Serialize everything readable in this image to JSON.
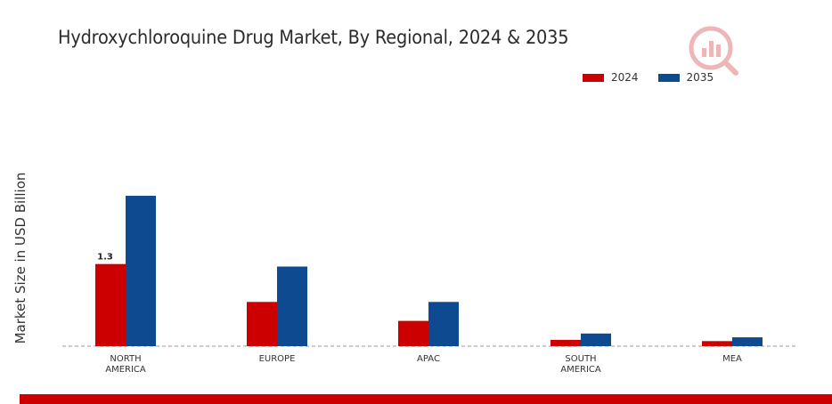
{
  "chart_data": {
    "type": "bar",
    "title": "Hydroxychloroquine Drug Market, By Regional, 2024 & 2035",
    "xlabel": "",
    "ylabel": "Market Size in USD Billion",
    "categories": [
      "NORTH\nAMERICA",
      "EUROPE",
      "APAC",
      "SOUTH\nAMERICA",
      "MEA"
    ],
    "series": [
      {
        "name": "2024",
        "color": "#cc0000",
        "values": [
          1.3,
          0.7,
          0.4,
          0.1,
          0.08
        ]
      },
      {
        "name": "2035",
        "color": "#0d4a8f",
        "values": [
          2.38,
          1.26,
          0.7,
          0.2,
          0.14
        ]
      }
    ],
    "ylim": [
      0,
      3.0
    ],
    "data_labels": [
      {
        "series": 0,
        "index": 0,
        "text": "1.3"
      }
    ],
    "legend_position": "top-right",
    "grid": false
  },
  "colors": {
    "accent": "#cc0000",
    "secondary": "#0d4a8f"
  }
}
